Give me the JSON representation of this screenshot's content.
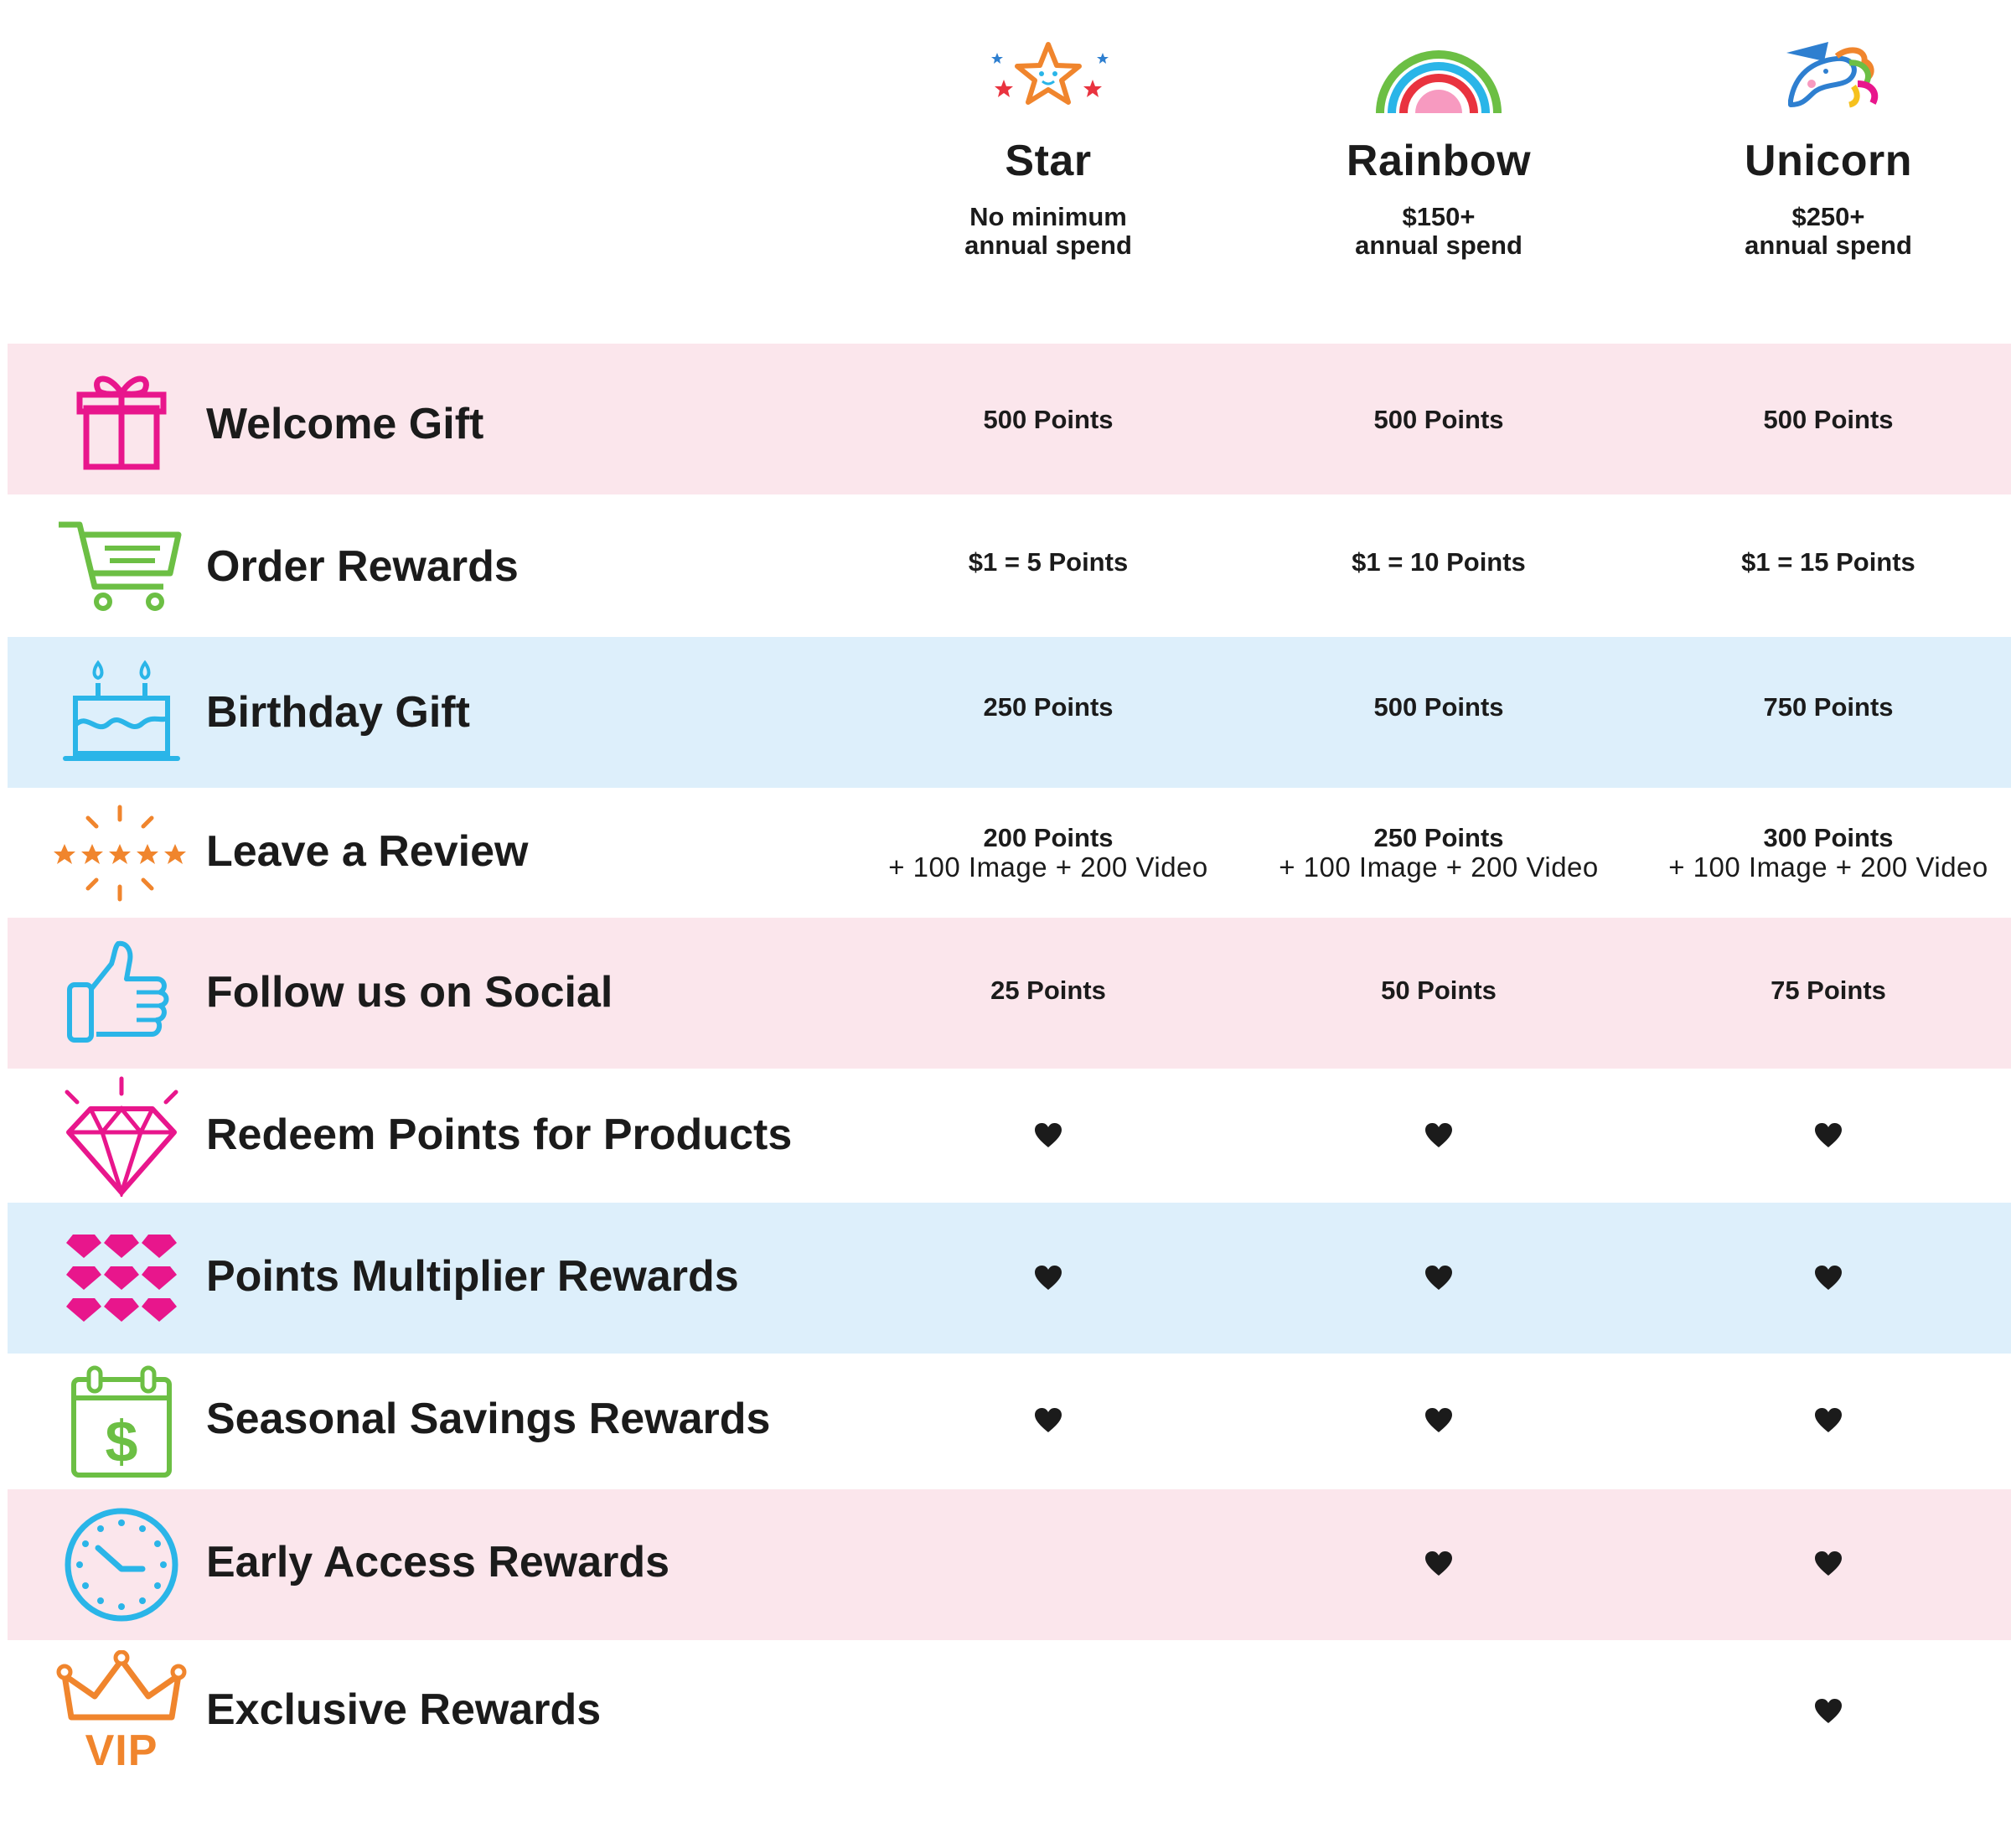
{
  "tiers": [
    {
      "name": "Star",
      "requirement_line1": "No minimum",
      "requirement_line2": "annual spend",
      "icon": "star-icon"
    },
    {
      "name": "Rainbow",
      "requirement_line1": "$150+",
      "requirement_line2": "annual spend",
      "icon": "rainbow-icon"
    },
    {
      "name": "Unicorn",
      "requirement_line1": "$250+",
      "requirement_line2": "annual spend",
      "icon": "unicorn-icon"
    }
  ],
  "rows": [
    {
      "label": "Welcome Gift",
      "icon": "gift-icon",
      "background": "#fbe6ec",
      "values": [
        "500 Points",
        "500 Points",
        "500 Points"
      ]
    },
    {
      "label": "Order Rewards",
      "icon": "shopping-cart-icon",
      "background": "#ffffff",
      "values": [
        "$1 = 5 Points",
        "$1 = 10 Points",
        "$1 = 15 Points"
      ]
    },
    {
      "label": "Birthday Gift",
      "icon": "birthday-cake-icon",
      "background": "#ddeffb",
      "values": [
        "250 Points",
        "500 Points",
        "750 Points"
      ]
    },
    {
      "label": "Leave a Review",
      "icon": "five-stars-icon",
      "background": "#ffffff",
      "values": [
        "200 Points",
        "250 Points",
        "300 Points"
      ],
      "extra": [
        "+ 100 Image + 200 Video",
        "+ 100 Image + 200 Video",
        "+ 100 Image + 200 Video"
      ]
    },
    {
      "label": "Follow us on Social",
      "icon": "thumbs-up-icon",
      "background": "#fbe6ec",
      "values": [
        "25 Points",
        "50 Points",
        "75 Points"
      ]
    },
    {
      "label": "Redeem Points for Products",
      "icon": "diamond-icon",
      "background": "#ffffff",
      "included": [
        true,
        true,
        true
      ]
    },
    {
      "label": "Points Multiplier Rewards",
      "icon": "gems-grid-icon",
      "background": "#ddeffb",
      "included": [
        true,
        true,
        true
      ]
    },
    {
      "label": "Seasonal Savings Rewards",
      "icon": "calendar-dollar-icon",
      "background": "#ffffff",
      "included": [
        true,
        true,
        true
      ]
    },
    {
      "label": "Early Access Rewards",
      "icon": "clock-icon",
      "background": "#fbe6ec",
      "included": [
        false,
        true,
        true
      ]
    },
    {
      "label": "Exclusive Rewards",
      "icon": "vip-crown-icon",
      "icon_text": "VIP",
      "background": "#ffffff",
      "included": [
        false,
        false,
        true
      ]
    }
  ],
  "included_marker_icon": "heart-icon",
  "colors": {
    "pink_band": "#fbe6ec",
    "blue_band": "#ddeffb",
    "magenta": "#e8168c",
    "green": "#6cbf44",
    "cyan": "#2ab5e8",
    "orange": "#f0852d",
    "text": "#1b1b1b"
  }
}
